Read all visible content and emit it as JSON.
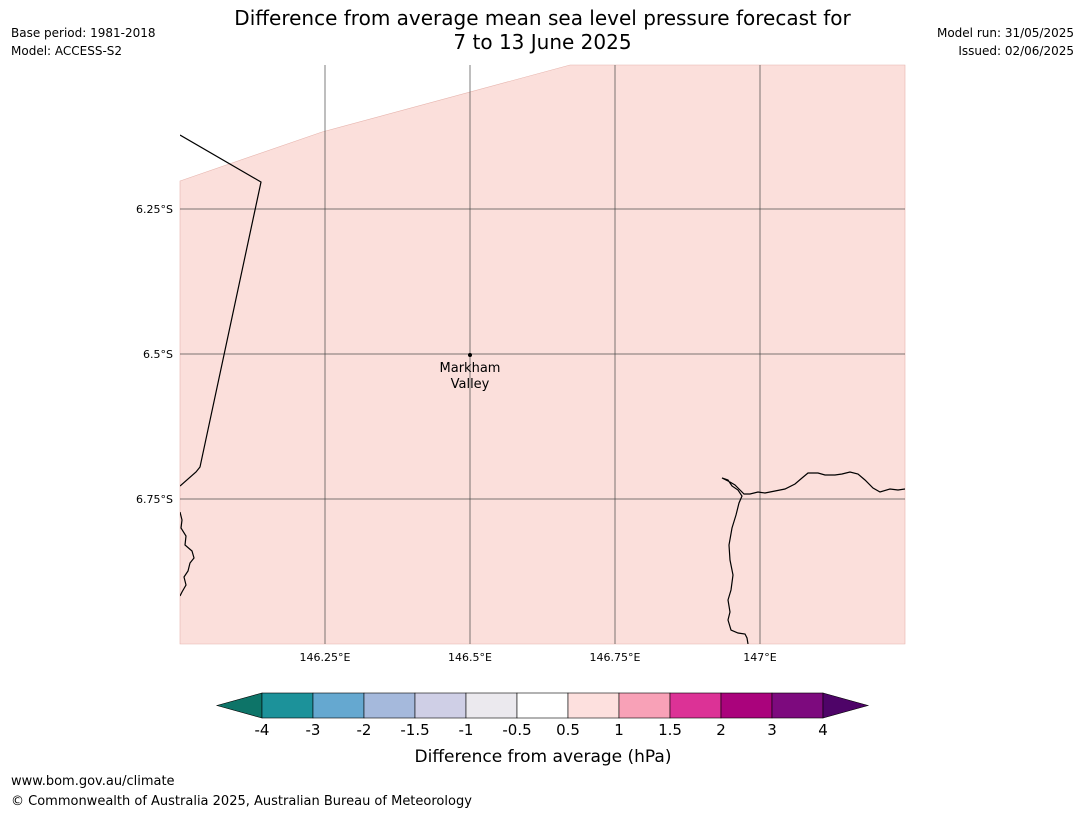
{
  "title": {
    "line1": "Difference from average mean sea level pressure forecast for",
    "line2": "7 to 13 June 2025"
  },
  "meta_left": {
    "base_period": "Base period: 1981-2018",
    "model": "Model: ACCESS-S2"
  },
  "meta_right": {
    "model_run": "Model run: 31/05/2025",
    "issued": "Issued: 02/06/2025"
  },
  "map": {
    "fill_color": "#fbdfdb",
    "lat_labels": [
      "6.25°S",
      "6.5°S",
      "6.75°S"
    ],
    "lon_labels": [
      "146.25°E",
      "146.5°E",
      "146.75°E",
      "147°E"
    ],
    "place": {
      "line1": "Markham",
      "line2": "Valley"
    }
  },
  "colorbar": {
    "label": "Difference from average (hPa)",
    "ticks": [
      "-4",
      "-3",
      "-2",
      "-1.5",
      "-1",
      "-0.5",
      "0.5",
      "1",
      "1.5",
      "2",
      "3",
      "4"
    ],
    "colors": [
      "#0d7468",
      "#1c929a",
      "#65a8d0",
      "#a5b9dc",
      "#cfcfe6",
      "#ebe9ee",
      "#ffffff",
      "#fde0de",
      "#f8a1b7",
      "#dc3296",
      "#aa037c",
      "#7d0a7e",
      "#4e0468"
    ]
  },
  "footer": {
    "url": "www.bom.gov.au/climate",
    "copyright": "© Commonwealth of Australia 2025, Australian Bureau of Meteorology"
  }
}
